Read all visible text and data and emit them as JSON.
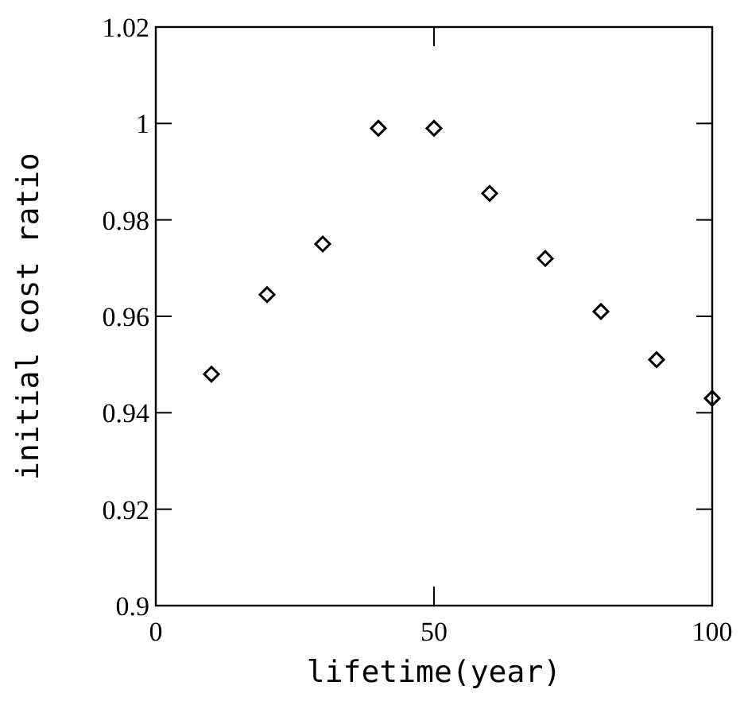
{
  "chart_data": {
    "type": "scatter",
    "xlabel": "lifetime(year)",
    "ylabel": "initial cost ratio",
    "x": [
      10,
      20,
      30,
      40,
      50,
      60,
      70,
      80,
      90,
      100
    ],
    "series": [
      {
        "color": "#000000",
        "values": [
          0.948,
          0.9645,
          0.975,
          0.999,
          0.999,
          0.9855,
          0.972,
          0.961,
          0.951,
          0.943
        ]
      }
    ],
    "xlim": [
      0,
      100
    ],
    "xticks": [
      0,
      50,
      100
    ],
    "ylim": [
      0.9,
      1.02
    ],
    "yticks": [
      0.9,
      0.92,
      0.94,
      0.96,
      0.98,
      {
        "value": 1,
        "label": "1"
      },
      1.02
    ],
    "marker": "diamond",
    "grid": false
  }
}
